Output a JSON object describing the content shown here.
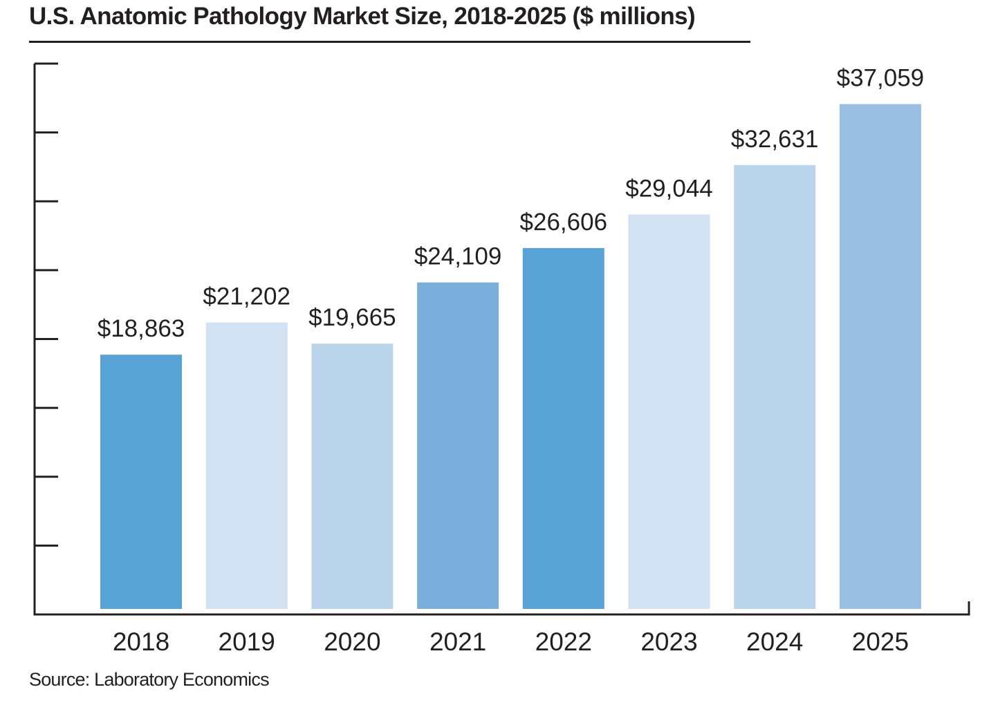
{
  "chart_data": {
    "type": "bar",
    "title": "U.S. Anatomic Pathology Market Size, 2018-2025 ($ millions)",
    "source": "Source: Laboratory Economics",
    "categories": [
      "2018",
      "2019",
      "2020",
      "2021",
      "2022",
      "2023",
      "2024",
      "2025"
    ],
    "values": [
      18863,
      21202,
      19665,
      24109,
      26606,
      29044,
      32631,
      37059
    ],
    "value_labels": [
      "$18,863",
      "$21,202",
      "$19,665",
      "$24,109",
      "$26,606",
      "$29,044",
      "$32,631",
      "$37,059"
    ],
    "bar_colors": [
      "#58a3d6",
      "#d2e2f2",
      "#bad4ec",
      "#7aafdc",
      "#58a3d6",
      "#d2e2f2",
      "#bad4ec",
      "#9bbfe3"
    ],
    "ylim": [
      0,
      40000
    ],
    "y_tick_count": 8,
    "xlabel": "",
    "ylabel": "",
    "grid": false,
    "legend": "none"
  }
}
